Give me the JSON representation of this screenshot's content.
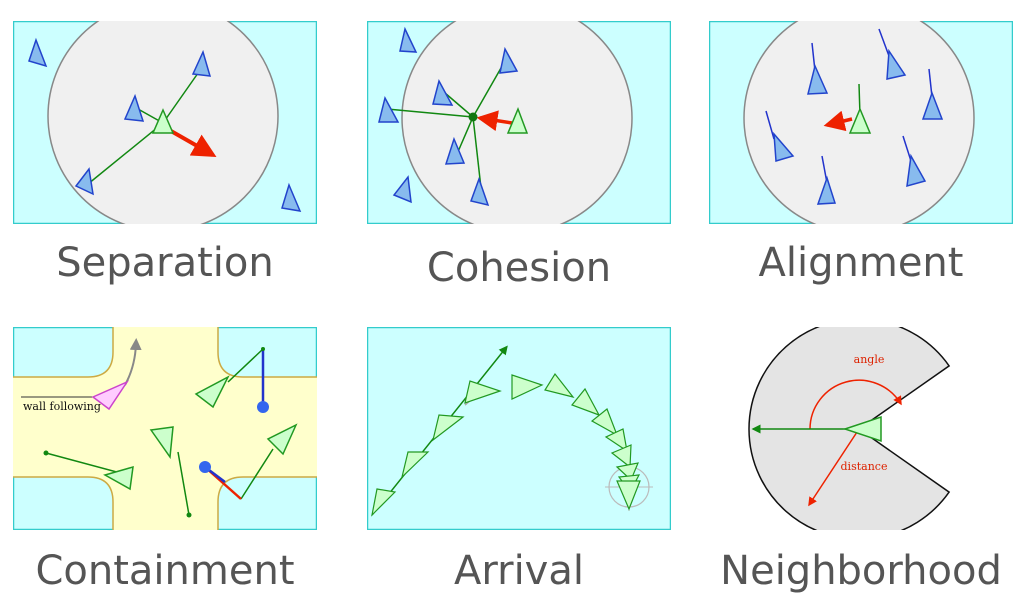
{
  "colors": {
    "panel_bg": "#ccffff",
    "panel_border": "#33cccc",
    "circle_fill": "#f0f0f0",
    "circle_stroke": "#888888",
    "boid_blue_fill": "#88bbee",
    "boid_blue_stroke": "#2244cc",
    "boid_green_fill": "#ccffcc",
    "boid_green_stroke": "#229922",
    "vector_green": "#118811",
    "vector_blue": "#2233cc",
    "vector_red": "#ee2200",
    "path_yellow": "#ffffcc",
    "path_edge": "#ccaa44",
    "pink_fill": "#ffccff",
    "pink_stroke": "#cc44cc",
    "caption": "#555555"
  },
  "captions": {
    "separation": "Separation",
    "cohesion": "Cohesion",
    "alignment": "Alignment",
    "containment": "Containment",
    "arrival": "Arrival",
    "neighborhood": "Neighborhood"
  },
  "labels": {
    "wall_following": "wall following",
    "angle": "angle",
    "distance": "distance"
  }
}
